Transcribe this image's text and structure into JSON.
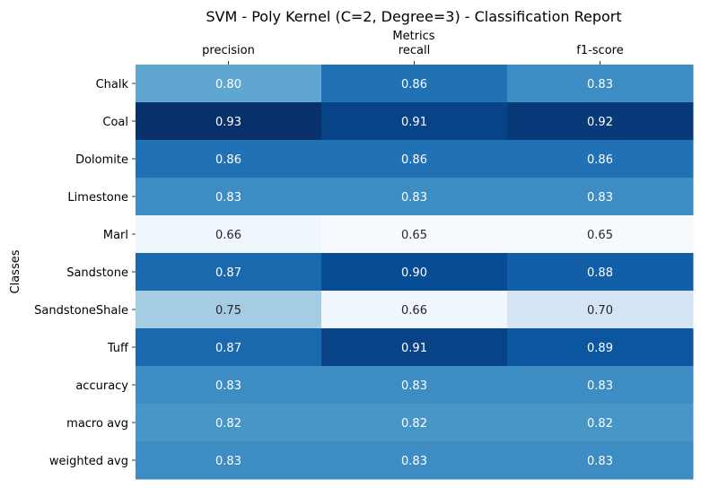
{
  "chart_data": {
    "type": "heatmap",
    "title": "SVM - Poly Kernel (C=2, Degree=3) - Classification Report",
    "xlabel": "Metrics",
    "ylabel": "Classes",
    "columns": [
      "precision",
      "recall",
      "f1-score"
    ],
    "rows": [
      "Chalk",
      "Coal",
      "Dolomite",
      "Limestone",
      "Marl",
      "Sandstone",
      "SandstoneShale",
      "Tuff",
      "accuracy",
      "macro avg",
      "weighted avg"
    ],
    "values": [
      [
        0.8,
        0.86,
        0.83
      ],
      [
        0.93,
        0.91,
        0.92
      ],
      [
        0.86,
        0.86,
        0.86
      ],
      [
        0.83,
        0.83,
        0.83
      ],
      [
        0.66,
        0.65,
        0.65
      ],
      [
        0.87,
        0.9,
        0.88
      ],
      [
        0.75,
        0.66,
        0.7
      ],
      [
        0.87,
        0.91,
        0.89
      ],
      [
        0.83,
        0.83,
        0.83
      ],
      [
        0.82,
        0.82,
        0.82
      ],
      [
        0.83,
        0.83,
        0.83
      ]
    ],
    "cell_labels": [
      [
        "0.80",
        "0.86",
        "0.83"
      ],
      [
        "0.93",
        "0.91",
        "0.92"
      ],
      [
        "0.86",
        "0.86",
        "0.86"
      ],
      [
        "0.83",
        "0.83",
        "0.83"
      ],
      [
        "0.66",
        "0.65",
        "0.65"
      ],
      [
        "0.87",
        "0.90",
        "0.88"
      ],
      [
        "0.75",
        "0.66",
        "0.70"
      ],
      [
        "0.87",
        "0.91",
        "0.89"
      ],
      [
        "0.83",
        "0.83",
        "0.83"
      ],
      [
        "0.82",
        "0.82",
        "0.82"
      ],
      [
        "0.83",
        "0.83",
        "0.83"
      ]
    ],
    "colormap": "Blues",
    "color_range": [
      0.65,
      0.93
    ],
    "colorbar": false,
    "x_axis_position": "top",
    "grid": false
  }
}
